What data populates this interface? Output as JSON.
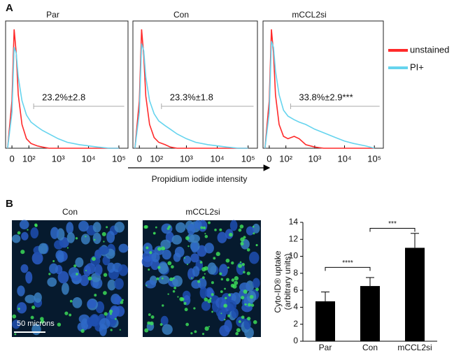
{
  "figure": {
    "panel_labels": [
      "A",
      "B"
    ],
    "x_label": "Propidium iodide intensity",
    "image_titles": [
      "Con",
      "mCCL2si"
    ],
    "scale_bar": "50 microns"
  },
  "chart_data": [
    {
      "type": "line",
      "title": "Par",
      "xscale": "biexponential",
      "xlim": [
        -30,
        200000
      ],
      "ylim": [
        0,
        100
      ],
      "xticks": [
        0,
        {
          "value": 100,
          "label": "10²"
        },
        {
          "value": 1000,
          "label": "10³"
        },
        {
          "value": 10000,
          "label": "10⁴"
        },
        {
          "value": 100000,
          "label": "10⁵"
        }
      ],
      "x": [
        -20,
        0,
        10,
        20,
        30,
        50,
        80,
        120,
        200,
        300,
        500,
        1000,
        2000,
        5000,
        10000,
        20000,
        50000,
        100000
      ],
      "series": [
        {
          "name": "unstained",
          "color": "#ff2a2a",
          "values": [
            0,
            40,
            100,
            80,
            45,
            20,
            8,
            4,
            2,
            1,
            0,
            0,
            0,
            0,
            0,
            0,
            0,
            0
          ]
        },
        {
          "name": "PI+",
          "color": "#66d4ee",
          "values": [
            0,
            30,
            85,
            80,
            60,
            40,
            28,
            22,
            18,
            15,
            12,
            8,
            5,
            3,
            2,
            1,
            0,
            0
          ]
        }
      ],
      "gate": [
        150,
        150000
      ],
      "annotation": "23.2%±2.8"
    },
    {
      "type": "line",
      "title": "Con",
      "xscale": "biexponential",
      "xlim": [
        -30,
        200000
      ],
      "ylim": [
        0,
        100
      ],
      "xticks": [
        0,
        {
          "value": 100,
          "label": "10²"
        },
        {
          "value": 1000,
          "label": "10³"
        },
        {
          "value": 10000,
          "label": "10⁴"
        },
        {
          "value": 100000,
          "label": "10⁵"
        }
      ],
      "x": [
        -20,
        0,
        10,
        20,
        30,
        50,
        80,
        120,
        200,
        300,
        500,
        1000,
        2000,
        5000,
        10000,
        20000,
        50000,
        100000
      ],
      "series": [
        {
          "name": "unstained",
          "color": "#ff2a2a",
          "values": [
            0,
            40,
            100,
            78,
            44,
            20,
            9,
            5,
            3,
            1,
            0,
            0,
            0,
            0,
            0,
            0,
            0,
            0
          ]
        },
        {
          "name": "PI+",
          "color": "#66d4ee",
          "values": [
            0,
            30,
            88,
            82,
            60,
            40,
            29,
            23,
            19,
            16,
            12,
            8,
            5,
            3,
            2,
            1,
            0,
            0
          ]
        }
      ],
      "gate": [
        150,
        150000
      ],
      "annotation": "23.3%±1.8"
    },
    {
      "type": "line",
      "title": "mCCL2si",
      "xscale": "biexponential",
      "xlim": [
        -30,
        200000
      ],
      "ylim": [
        0,
        100
      ],
      "xticks": [
        0,
        {
          "value": 100,
          "label": "10²"
        },
        {
          "value": 1000,
          "label": "10³"
        },
        {
          "value": 10000,
          "label": "10⁴"
        },
        {
          "value": 100000,
          "label": "10⁵"
        }
      ],
      "x": [
        -20,
        0,
        10,
        20,
        30,
        50,
        80,
        120,
        200,
        300,
        500,
        1000,
        2000,
        5000,
        10000,
        20000,
        50000,
        100000
      ],
      "series": [
        {
          "name": "unstained",
          "color": "#ff2a2a",
          "values": [
            0,
            40,
            100,
            80,
            45,
            20,
            10,
            8,
            10,
            8,
            3,
            1,
            0,
            0,
            0,
            0,
            0,
            0
          ]
        },
        {
          "name": "PI+",
          "color": "#66d4ee",
          "values": [
            0,
            30,
            90,
            85,
            65,
            45,
            32,
            27,
            24,
            22,
            20,
            16,
            13,
            9,
            6,
            4,
            2,
            0
          ]
        }
      ],
      "gate": [
        150,
        150000
      ],
      "annotation": "33.8%±2.9***"
    },
    {
      "type": "bar",
      "ylabel": [
        "Cyto-ID® uptake",
        "(arbitrary units)"
      ],
      "categories": [
        "Par",
        "Con",
        "mCCL2si"
      ],
      "values": [
        4.7,
        6.5,
        11.0
      ],
      "errors": [
        1.1,
        1.0,
        1.7
      ],
      "color": "#000000",
      "ylim": [
        0,
        14
      ],
      "yticks": [
        0,
        2,
        4,
        6,
        8,
        10,
        12,
        14
      ],
      "significance": [
        {
          "y": 8.7,
          "label": "****"
        },
        {
          "y": 13.3,
          "label": "***"
        }
      ]
    }
  ]
}
